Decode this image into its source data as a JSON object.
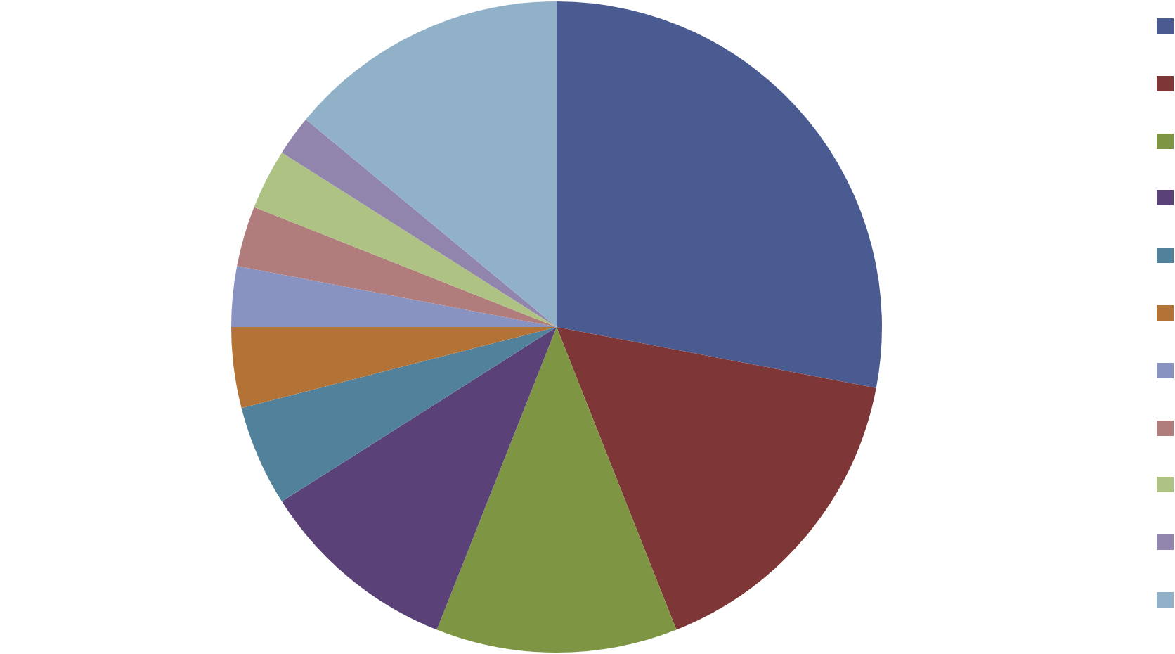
{
  "chart_data": {
    "type": "pie",
    "categories": [
      null,
      null,
      null,
      null,
      null,
      null,
      null,
      null,
      null,
      null,
      null
    ],
    "values": [
      28,
      16,
      12,
      10,
      5,
      4,
      3,
      3,
      3,
      2,
      14
    ],
    "colors": [
      "#4a5b91",
      "#7e3736",
      "#7e9644",
      "#5a4278",
      "#52829b",
      "#b37236",
      "#8893c2",
      "#b07d7c",
      "#adc283",
      "#9184ad",
      "#91b1c8"
    ]
  }
}
